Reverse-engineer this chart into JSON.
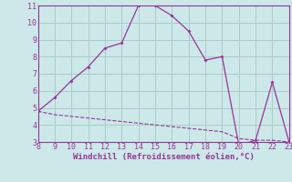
{
  "xlabel": "Windchill (Refroidissement éolien,°C)",
  "line1_x": [
    8,
    9,
    10,
    11,
    12,
    13,
    14,
    15,
    16,
    17,
    18,
    19,
    20,
    21,
    22,
    23
  ],
  "line1_y": [
    4.8,
    5.6,
    6.6,
    7.4,
    8.5,
    8.8,
    11.0,
    11.0,
    10.4,
    9.5,
    7.8,
    8.0,
    2.8,
    3.1,
    6.5,
    3.0
  ],
  "line2_x": [
    8,
    9,
    10,
    11,
    12,
    13,
    14,
    15,
    16,
    17,
    18,
    19,
    20,
    21,
    22,
    23
  ],
  "line2_y": [
    4.8,
    4.6,
    4.5,
    4.4,
    4.3,
    4.2,
    4.1,
    4.0,
    3.9,
    3.8,
    3.7,
    3.6,
    3.2,
    3.1,
    3.1,
    3.0
  ],
  "line_color": "#993399",
  "bg_color": "#cce8e8",
  "grid_color": "#aacccc",
  "xlim": [
    8,
    23
  ],
  "ylim": [
    3,
    11
  ],
  "yticks": [
    3,
    4,
    5,
    6,
    7,
    8,
    9,
    10,
    11
  ],
  "xticks": [
    8,
    9,
    10,
    11,
    12,
    13,
    14,
    15,
    16,
    17,
    18,
    19,
    20,
    21,
    22,
    23
  ],
  "tick_fontsize": 6,
  "xlabel_fontsize": 6.5
}
